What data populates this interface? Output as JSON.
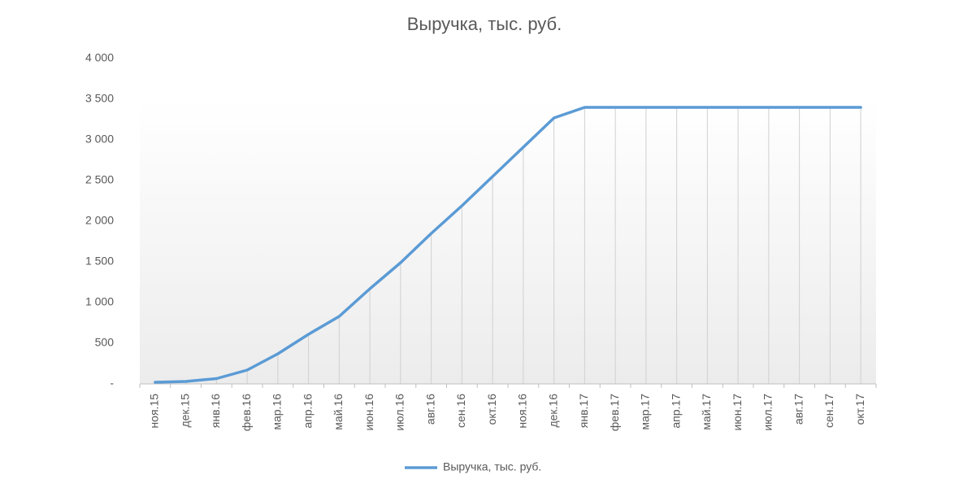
{
  "chart_data": {
    "type": "line",
    "title": "Выручка, тыс. руб.",
    "categories": [
      "ноя.15",
      "дек.15",
      "янв.16",
      "фев.16",
      "мар.16",
      "апр.16",
      "май.16",
      "июн.16",
      "июл.16",
      "авг.16",
      "сен.16",
      "окт.16",
      "ноя.16",
      "дек.16",
      "янв.17",
      "фев.17",
      "мар.17",
      "апр.17",
      "май.17",
      "июн.17",
      "июл.17",
      "авг.17",
      "сен.17",
      "окт.17"
    ],
    "series": [
      {
        "name": "Выручка, тыс. руб.",
        "color": "#5b9bd5",
        "values": [
          20,
          30,
          65,
          170,
          370,
          610,
          830,
          1170,
          1490,
          1850,
          2190,
          2550,
          2910,
          3270,
          3400,
          3400,
          3400,
          3400,
          3400,
          3400,
          3400,
          3400,
          3400,
          3400
        ]
      }
    ],
    "ylim": [
      0,
      4000
    ],
    "yticks": [
      {
        "value": 0,
        "label": "-"
      },
      500,
      {
        "value": 1000,
        "label": "1 000"
      },
      {
        "value": 1500,
        "label": "1 500"
      },
      {
        "value": 2000,
        "label": "2 000"
      },
      {
        "value": 2500,
        "label": "2 500"
      },
      {
        "value": 3000,
        "label": "3 000"
      },
      {
        "value": 3500,
        "label": "3 500"
      },
      {
        "value": 4000,
        "label": "4 000"
      }
    ],
    "drop_lines": true,
    "legend": "bottom"
  }
}
